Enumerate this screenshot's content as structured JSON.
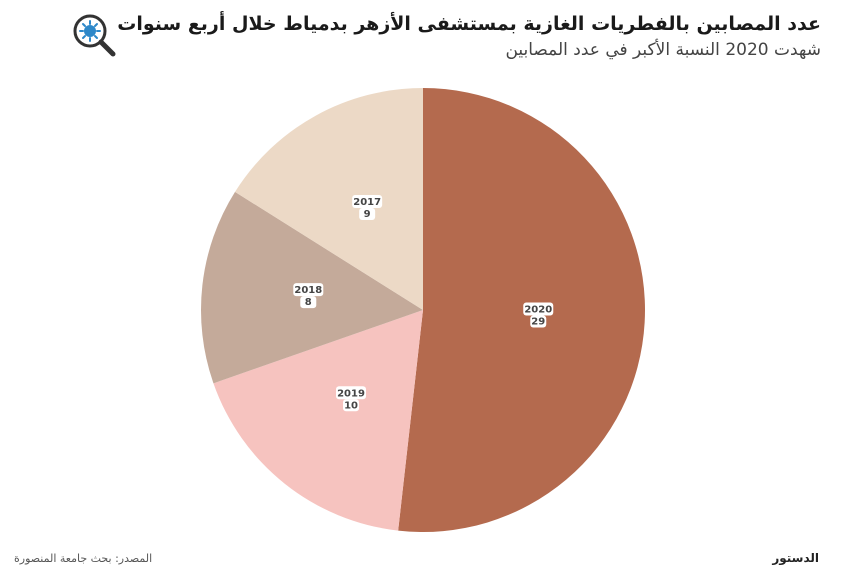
{
  "header": {
    "title": "عدد المصابين بالفطريات الغازية بمستشفى الأزهر بدمياط خلال أربع سنوات",
    "subtitle": "شهدت 2020 النسبة الأكبر في عدد المصابين",
    "icon": "magnifier-virus-icon"
  },
  "footer": {
    "source": "المصدر: بحث جامعة المنصورة",
    "logo": "الدستور"
  },
  "colors": {
    "2020": "#b46a4e",
    "2019": "#f6c3bf",
    "2018": "#c4aa9a",
    "2017": "#ecd9c6",
    "icon": "#2e88c9"
  },
  "chart_data": {
    "type": "pie",
    "slices": [
      {
        "label": "2020",
        "value": 29
      },
      {
        "label": "2019",
        "value": 10
      },
      {
        "label": "2018",
        "value": 8
      },
      {
        "label": "2017",
        "value": 9
      }
    ]
  }
}
